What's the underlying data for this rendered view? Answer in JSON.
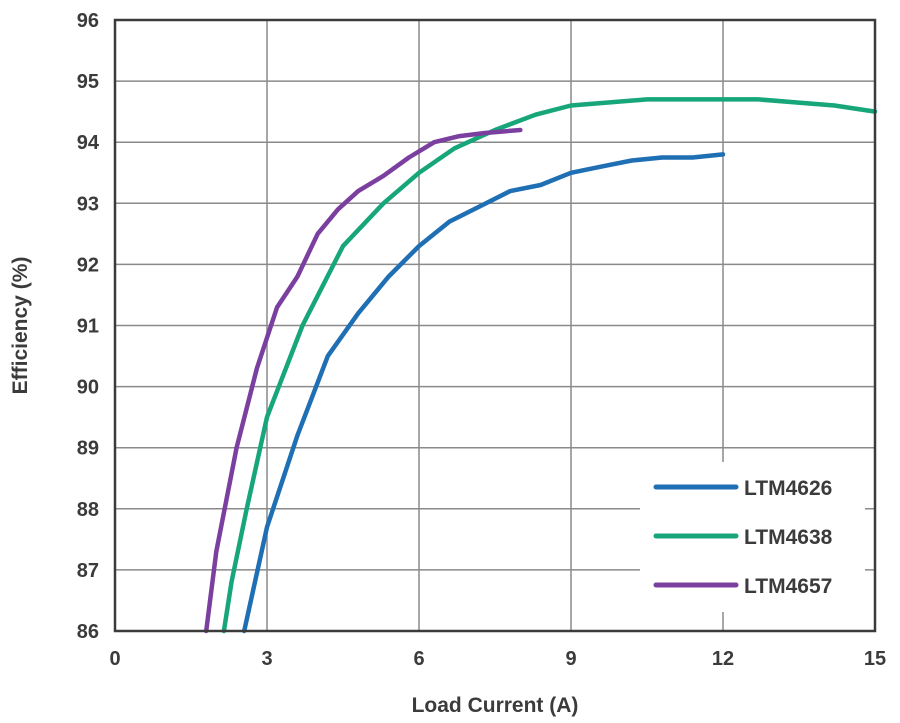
{
  "chart_data": {
    "type": "line",
    "xlabel": "Load Current (A)",
    "ylabel": "Efficiency (%)",
    "xlim": [
      0,
      15
    ],
    "ylim": [
      86,
      96
    ],
    "xticks": [
      0,
      3,
      6,
      9,
      12,
      15
    ],
    "yticks": [
      86,
      87,
      88,
      89,
      90,
      91,
      92,
      93,
      94,
      95,
      96
    ],
    "grid": true,
    "legend_position": "bottom-right",
    "series": [
      {
        "name": "LTM4626",
        "color": "#1f6fb4",
        "x": [
          2.55,
          3.0,
          3.6,
          4.2,
          4.8,
          5.4,
          6.0,
          6.6,
          7.2,
          7.8,
          8.4,
          9.0,
          9.6,
          10.2,
          10.8,
          11.4,
          12.0
        ],
        "y": [
          86.0,
          87.7,
          89.2,
          90.5,
          91.2,
          91.8,
          92.3,
          92.7,
          92.95,
          93.2,
          93.3,
          93.5,
          93.6,
          93.7,
          93.75,
          93.75,
          93.8
        ]
      },
      {
        "name": "LTM4638",
        "color": "#16a67a",
        "x": [
          2.15,
          2.3,
          2.6,
          3.0,
          3.7,
          4.5,
          5.3,
          6.0,
          6.7,
          7.5,
          8.3,
          9.0,
          10.5,
          12.7,
          14.2,
          15.0
        ],
        "y": [
          86.0,
          86.8,
          88.0,
          89.5,
          91.0,
          92.3,
          93.0,
          93.5,
          93.9,
          94.2,
          94.45,
          94.6,
          94.7,
          94.7,
          94.6,
          94.5
        ]
      },
      {
        "name": "LTM4657",
        "color": "#7b3fa0",
        "x": [
          1.8,
          2.0,
          2.4,
          2.8,
          3.2,
          3.6,
          4.0,
          4.4,
          4.8,
          5.3,
          5.8,
          6.3,
          6.8,
          7.3,
          8.0
        ],
        "y": [
          86.0,
          87.3,
          89.0,
          90.3,
          91.3,
          91.8,
          92.5,
          92.9,
          93.2,
          93.45,
          93.75,
          94.0,
          94.1,
          94.15,
          94.2
        ]
      }
    ]
  }
}
